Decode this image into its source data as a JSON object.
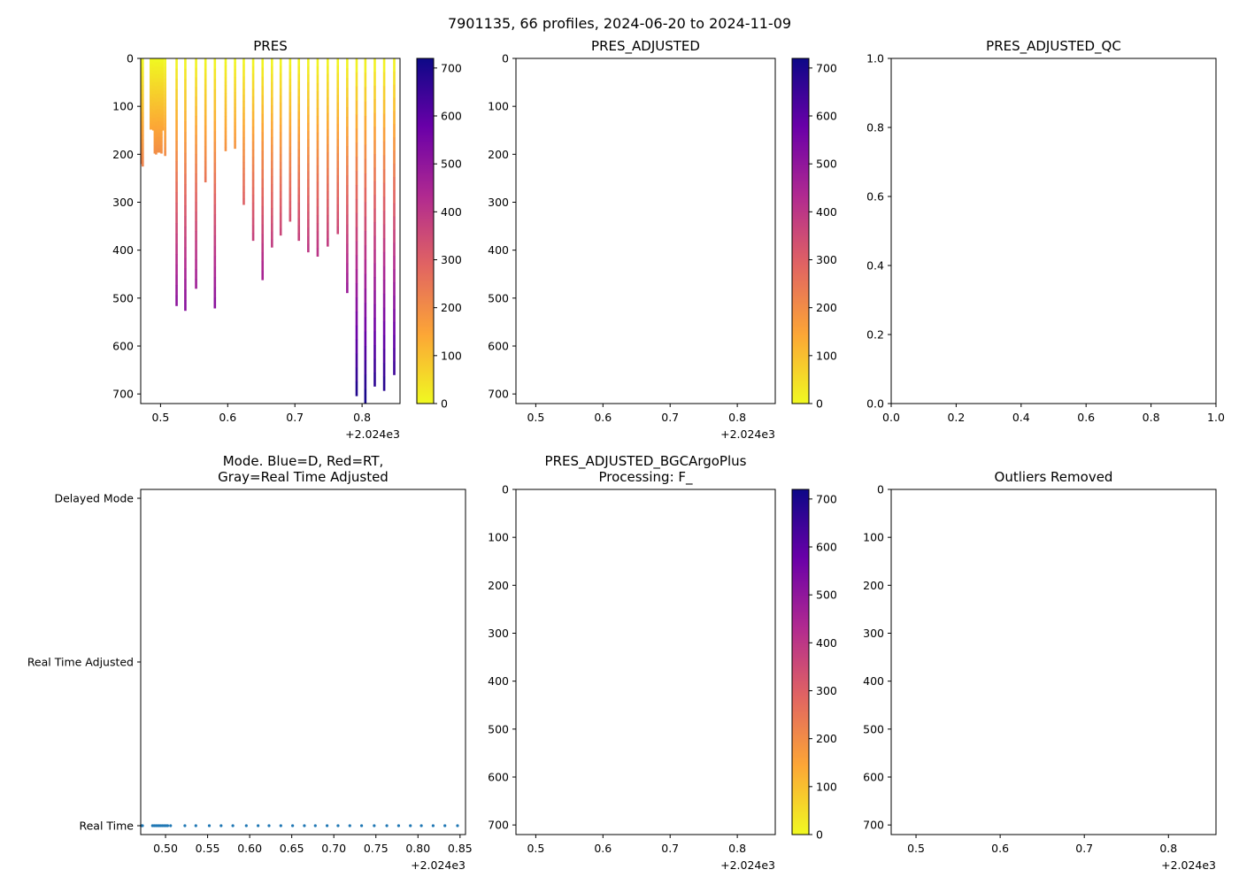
{
  "suptitle": "7901135, 66 profiles, 2024-06-20 to 2024-11-09",
  "colors": {
    "colormap": [
      "#f0f921",
      "#fca636",
      "#e16462",
      "#b12a90",
      "#6a00a8",
      "#0d0887"
    ],
    "mode_marker": "#1f77b4",
    "axis": "#000000"
  },
  "chart_data": [
    {
      "id": "pres",
      "type": "scatter",
      "title": "PRES",
      "xlabel": "",
      "ylabel": "",
      "xlim": [
        0.4705,
        0.8565
      ],
      "ylim": [
        720,
        0
      ],
      "xticks": [
        0.5,
        0.6,
        0.7,
        0.8
      ],
      "xtick_labels": [
        "0.5",
        "0.6",
        "0.7",
        "0.8"
      ],
      "yticks": [
        0,
        100,
        200,
        300,
        400,
        500,
        600,
        700
      ],
      "ytick_labels": [
        "0",
        "100",
        "200",
        "300",
        "400",
        "500",
        "600",
        "700"
      ],
      "x_offset_label": "+2.024e3",
      "colorbar": {
        "range": [
          0,
          720
        ],
        "ticks": [
          0,
          100,
          200,
          300,
          400,
          500,
          600,
          700
        ],
        "tick_labels": [
          "0",
          "100",
          "200",
          "300",
          "400",
          "500",
          "600",
          "700"
        ]
      },
      "profiles": [
        {
          "x": 0.4713,
          "max_p": 220
        },
        {
          "x": 0.4726,
          "max_p": 225
        },
        {
          "x": 0.4845,
          "max_p": 148
        },
        {
          "x": 0.4865,
          "max_p": 148
        },
        {
          "x": 0.4885,
          "max_p": 150
        },
        {
          "x": 0.4905,
          "max_p": 198
        },
        {
          "x": 0.4925,
          "max_p": 200
        },
        {
          "x": 0.4945,
          "max_p": 196
        },
        {
          "x": 0.4965,
          "max_p": 196
        },
        {
          "x": 0.4985,
          "max_p": 196
        },
        {
          "x": 0.5005,
          "max_p": 198
        },
        {
          "x": 0.5025,
          "max_p": 150
        },
        {
          "x": 0.506,
          "max_p": 203
        },
        {
          "x": 0.523,
          "max_p": 516
        },
        {
          "x": 0.536,
          "max_p": 526
        },
        {
          "x": 0.552,
          "max_p": 480
        },
        {
          "x": 0.566,
          "max_p": 258
        },
        {
          "x": 0.58,
          "max_p": 521
        },
        {
          "x": 0.596,
          "max_p": 193
        },
        {
          "x": 0.61,
          "max_p": 188
        },
        {
          "x": 0.623,
          "max_p": 305
        },
        {
          "x": 0.637,
          "max_p": 380
        },
        {
          "x": 0.651,
          "max_p": 462
        },
        {
          "x": 0.665,
          "max_p": 394
        },
        {
          "x": 0.678,
          "max_p": 369
        },
        {
          "x": 0.692,
          "max_p": 340
        },
        {
          "x": 0.705,
          "max_p": 380
        },
        {
          "x": 0.719,
          "max_p": 404
        },
        {
          "x": 0.733,
          "max_p": 413
        },
        {
          "x": 0.748,
          "max_p": 392
        },
        {
          "x": 0.763,
          "max_p": 366
        },
        {
          "x": 0.777,
          "max_p": 489
        },
        {
          "x": 0.791,
          "max_p": 704
        },
        {
          "x": 0.804,
          "max_p": 720
        },
        {
          "x": 0.818,
          "max_p": 684
        },
        {
          "x": 0.832,
          "max_p": 693
        },
        {
          "x": 0.847,
          "max_p": 660
        }
      ]
    },
    {
      "id": "pres_adjusted",
      "type": "scatter",
      "title": "PRES_ADJUSTED",
      "xlim": [
        0.4705,
        0.8565
      ],
      "ylim": [
        720,
        0
      ],
      "xticks": [
        0.5,
        0.6,
        0.7,
        0.8
      ],
      "xtick_labels": [
        "0.5",
        "0.6",
        "0.7",
        "0.8"
      ],
      "yticks": [
        0,
        100,
        200,
        300,
        400,
        500,
        600,
        700
      ],
      "ytick_labels": [
        "0",
        "100",
        "200",
        "300",
        "400",
        "500",
        "600",
        "700"
      ],
      "x_offset_label": "+2.024e3",
      "colorbar": {
        "range": [
          0,
          720
        ],
        "ticks": [
          0,
          100,
          200,
          300,
          400,
          500,
          600,
          700
        ],
        "tick_labels": [
          "0",
          "100",
          "200",
          "300",
          "400",
          "500",
          "600",
          "700"
        ]
      },
      "profiles": []
    },
    {
      "id": "pres_adjusted_qc",
      "type": "scatter",
      "title": "PRES_ADJUSTED_QC",
      "xlim": [
        0,
        1
      ],
      "ylim": [
        0,
        1
      ],
      "xticks": [
        0,
        0.2,
        0.4,
        0.6,
        0.8,
        1.0
      ],
      "xtick_labels": [
        "0.0",
        "0.2",
        "0.4",
        "0.6",
        "0.8",
        "1.0"
      ],
      "yticks": [
        0,
        0.2,
        0.4,
        0.6,
        0.8,
        1.0
      ],
      "ytick_labels": [
        "0.0",
        "0.2",
        "0.4",
        "0.6",
        "0.8",
        "1.0"
      ],
      "profiles": []
    },
    {
      "id": "mode",
      "type": "scatter",
      "title": "Mode. Blue=D, Red=RT,",
      "title2": "Gray=Real Time Adjusted",
      "xlim": [
        0.4705,
        0.8565
      ],
      "ylim": [
        0,
        2
      ],
      "xticks": [
        0.5,
        0.55,
        0.6,
        0.65,
        0.7,
        0.75,
        0.8,
        0.85
      ],
      "xtick_labels": [
        "0.50",
        "0.55",
        "0.60",
        "0.65",
        "0.70",
        "0.75",
        "0.80",
        "0.85"
      ],
      "yticks": [
        0,
        1,
        2
      ],
      "ytick_labels": [
        "Real Time",
        "Real Time Adjusted",
        "Delayed Mode"
      ],
      "x_offset_label": "+2.024e3",
      "points_x": [
        0.4713,
        0.4726,
        0.4845,
        0.4865,
        0.4885,
        0.4905,
        0.4925,
        0.4945,
        0.4965,
        0.4985,
        0.5005,
        0.5025,
        0.506,
        0.523,
        0.536,
        0.552,
        0.566,
        0.58,
        0.596,
        0.61,
        0.623,
        0.637,
        0.651,
        0.665,
        0.678,
        0.692,
        0.705,
        0.719,
        0.733,
        0.748,
        0.763,
        0.777,
        0.791,
        0.804,
        0.818,
        0.832,
        0.847
      ],
      "points_mode": 0
    },
    {
      "id": "bgc",
      "type": "scatter",
      "title": "PRES_ADJUSTED_BGCArgoPlus",
      "title2": "Processing: F_",
      "xlim": [
        0.4705,
        0.8565
      ],
      "ylim": [
        720,
        0
      ],
      "xticks": [
        0.5,
        0.6,
        0.7,
        0.8
      ],
      "xtick_labels": [
        "0.5",
        "0.6",
        "0.7",
        "0.8"
      ],
      "yticks": [
        0,
        100,
        200,
        300,
        400,
        500,
        600,
        700
      ],
      "ytick_labels": [
        "0",
        "100",
        "200",
        "300",
        "400",
        "500",
        "600",
        "700"
      ],
      "x_offset_label": "+2.024e3",
      "colorbar": {
        "range": [
          0,
          720
        ],
        "ticks": [
          0,
          100,
          200,
          300,
          400,
          500,
          600,
          700
        ],
        "tick_labels": [
          "0",
          "100",
          "200",
          "300",
          "400",
          "500",
          "600",
          "700"
        ]
      },
      "profiles": []
    },
    {
      "id": "outliers",
      "type": "scatter",
      "title": "Outliers Removed",
      "xlim": [
        0.4705,
        0.8565
      ],
      "ylim": [
        720,
        0
      ],
      "xticks": [
        0.5,
        0.6,
        0.7,
        0.8
      ],
      "xtick_labels": [
        "0.5",
        "0.6",
        "0.7",
        "0.8"
      ],
      "yticks": [
        0,
        100,
        200,
        300,
        400,
        500,
        600,
        700
      ],
      "ytick_labels": [
        "0",
        "100",
        "200",
        "300",
        "400",
        "500",
        "600",
        "700"
      ],
      "x_offset_label": "+2.024e3",
      "profiles": []
    }
  ]
}
